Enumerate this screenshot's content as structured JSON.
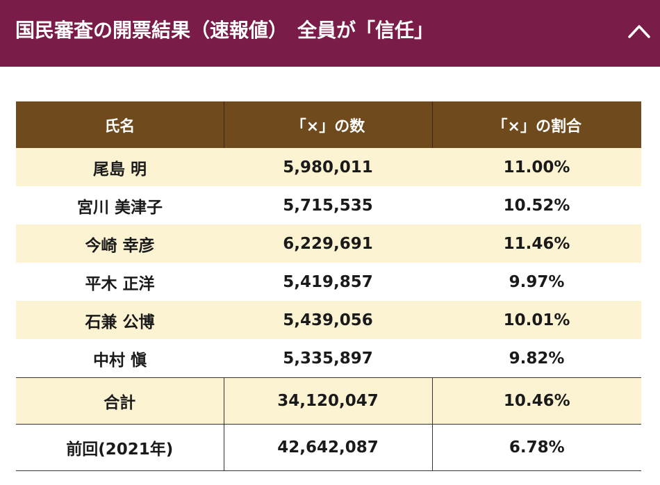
{
  "header": {
    "title": "国民審査の開票結果（速報値）　全員が「信任」",
    "collapse_icon": "chevron-up-icon",
    "background_color": "#7a1c48"
  },
  "table": {
    "header_color": "#6e4a1d",
    "stripe_color": "#fcf3d3",
    "columns": [
      "氏名",
      "「×」の数",
      "「×」の割合"
    ],
    "rows": [
      {
        "name": "尾島 明",
        "count": "5,980,011",
        "rate": "11.00%"
      },
      {
        "name": "宮川 美津子",
        "count": "5,715,535",
        "rate": "10.52%"
      },
      {
        "name": "今崎 幸彦",
        "count": "6,229,691",
        "rate": "11.46%"
      },
      {
        "name": "平木 正洋",
        "count": "5,419,857",
        "rate": "9.97%"
      },
      {
        "name": "石兼 公博",
        "count": "5,439,056",
        "rate": "10.01%"
      },
      {
        "name": "中村 愼",
        "count": "5,335,897",
        "rate": "9.82%"
      }
    ],
    "total": {
      "label": "合計",
      "count": "34,120,047",
      "rate": "10.46%"
    },
    "previous": {
      "label": "前回(2021年)",
      "count": "42,642,087",
      "rate": "6.78%"
    }
  }
}
